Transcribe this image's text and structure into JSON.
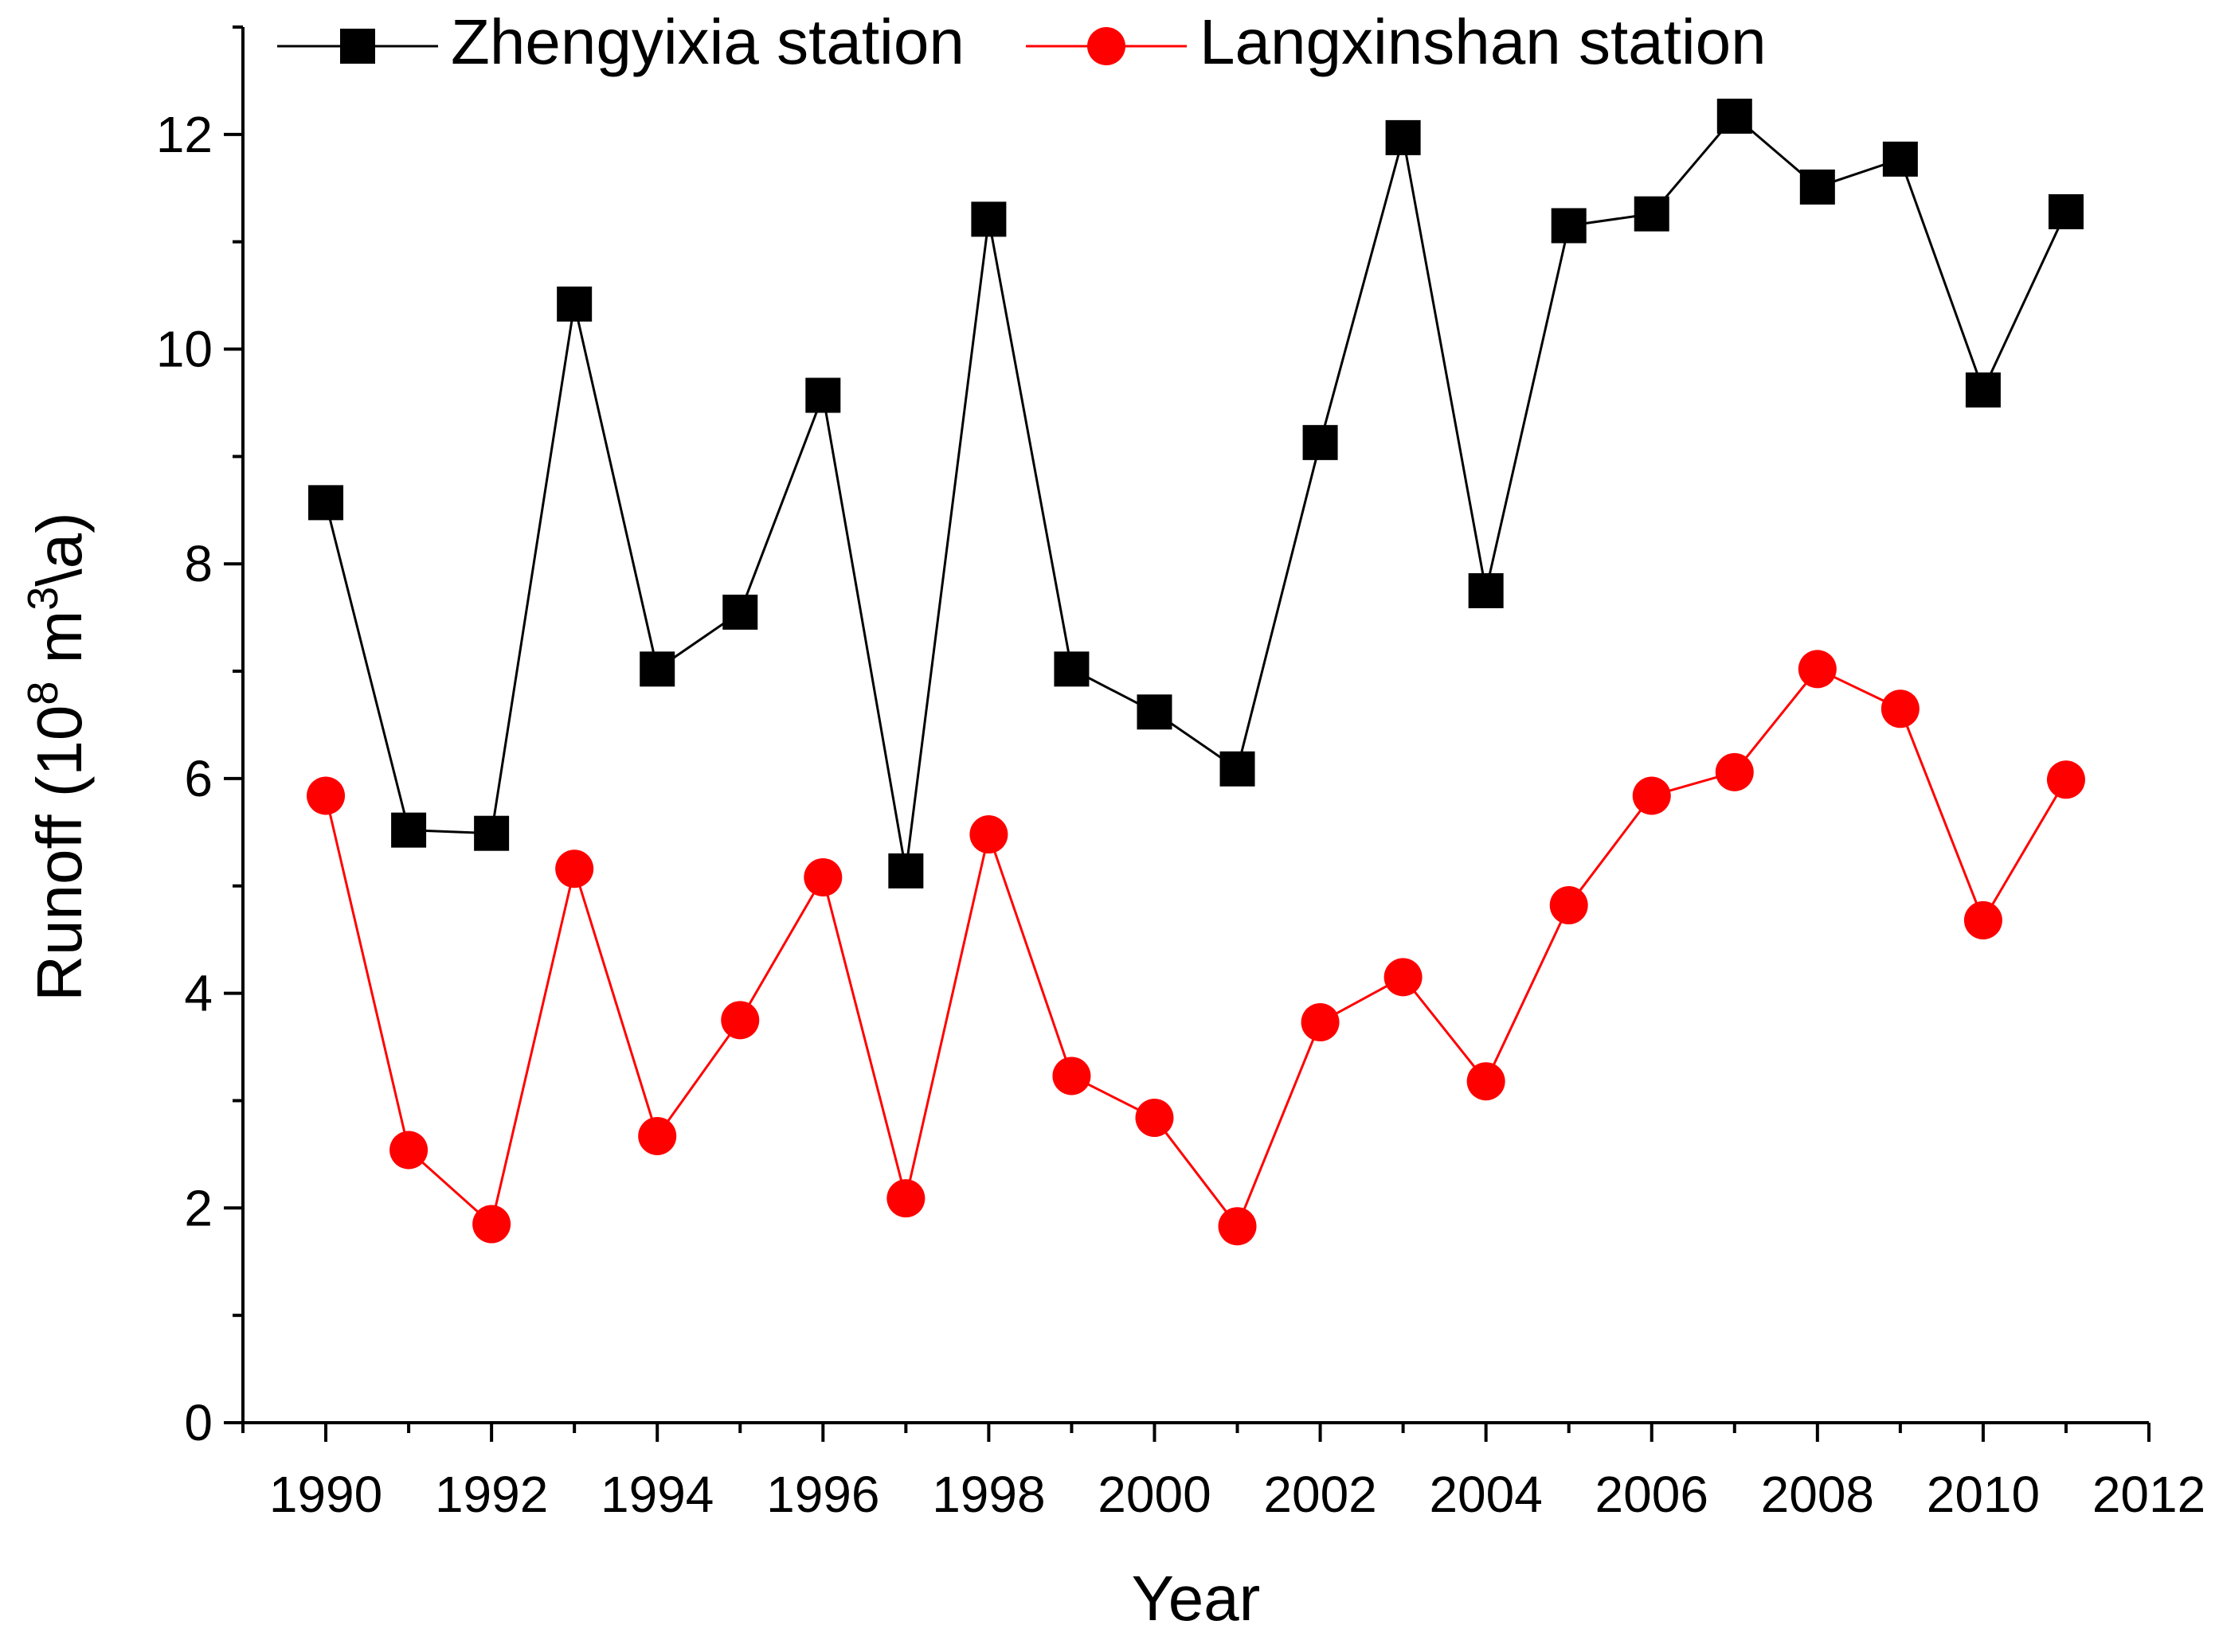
{
  "chart_data": {
    "type": "line",
    "title": "",
    "xlabel": "Year",
    "ylabel": {
      "prefix": "Runoff (10",
      "exp1": "8",
      "mid": " m",
      "exp2": "3",
      "suffix": "\\a)"
    },
    "xlim": [
      1989,
      2012
    ],
    "ylim": [
      0,
      13
    ],
    "xticks": [
      1990,
      1992,
      1994,
      1996,
      1998,
      2000,
      2002,
      2004,
      2006,
      2008,
      2010,
      2012
    ],
    "yticks": [
      0,
      2,
      4,
      6,
      8,
      10,
      12
    ],
    "x": [
      1990,
      1991,
      1992,
      1993,
      1994,
      1995,
      1996,
      1997,
      1998,
      1999,
      2000,
      2001,
      2002,
      2003,
      2004,
      2005,
      2006,
      2007,
      2008,
      2009,
      2010,
      2011
    ],
    "series": [
      {
        "name": "Zhengyixia station",
        "color": "#000000",
        "marker": "square",
        "values": [
          8.57,
          5.52,
          5.49,
          10.42,
          7.02,
          7.55,
          9.57,
          5.14,
          11.21,
          7.02,
          6.62,
          6.09,
          9.13,
          11.97,
          7.75,
          11.15,
          11.26,
          12.17,
          11.51,
          11.77,
          9.62,
          11.28
        ]
      },
      {
        "name": "Langxinshan station",
        "color": "#ff0000",
        "marker": "circle",
        "values": [
          5.84,
          2.54,
          1.85,
          5.16,
          2.67,
          3.75,
          5.08,
          2.09,
          5.48,
          3.23,
          2.84,
          1.83,
          3.73,
          4.15,
          3.18,
          4.82,
          5.84,
          6.06,
          7.02,
          6.65,
          4.68,
          5.99
        ]
      }
    ],
    "legend_position": "top-left",
    "grid": false
  }
}
